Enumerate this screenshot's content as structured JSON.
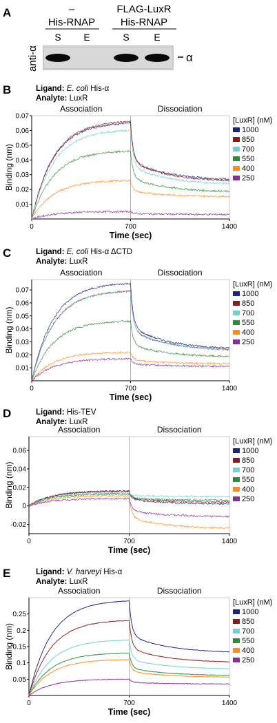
{
  "panel_letters": [
    "A",
    "B",
    "C",
    "D",
    "E"
  ],
  "blot": {
    "side_label": "anti-α",
    "band_label": "α",
    "groups": [
      {
        "top": "–",
        "bottom": "His-RNAP",
        "lanes": [
          "S",
          "E"
        ]
      },
      {
        "top": "FLAG-LuxR",
        "bottom": "His-RNAP",
        "lanes": [
          "S",
          "E"
        ]
      }
    ],
    "band_present": [
      true,
      false,
      true,
      true
    ]
  },
  "legend": {
    "title": "[LuxR] (nM)",
    "entries": [
      "1000",
      "850",
      "700",
      "550",
      "400",
      "250"
    ],
    "colors": [
      "#1a237e",
      "#8b1a1a",
      "#6fd0d6",
      "#2e8b3a",
      "#ff8c1a",
      "#8a2b9a"
    ]
  },
  "chart_data": [
    {
      "type": "line",
      "ligand_label": "Ligand:",
      "ligand_value_italic": "E. coli",
      "ligand_value": "His-α",
      "analyte_label": "Analyte:",
      "analyte_value": "LuxR",
      "phase_labels": [
        "Association",
        "Dissociation"
      ],
      "xlabel": "Time (sec)",
      "ylabel": "Binding (nm)",
      "xlim": [
        0,
        1400
      ],
      "ylim": [
        0,
        0.07
      ],
      "xticks": [
        "0",
        "700",
        "1400"
      ],
      "yticks": [
        0.01,
        0.02,
        0.03,
        0.04,
        0.05,
        0.06,
        0.07
      ],
      "assoc_end": 700,
      "series": [
        {
          "name": "1000",
          "assoc_end_value": 0.065,
          "diss_end_value": 0.026
        },
        {
          "name": "850",
          "assoc_end_value": 0.066,
          "diss_end_value": 0.025
        },
        {
          "name": "700",
          "assoc_end_value": 0.06,
          "diss_end_value": 0.023
        },
        {
          "name": "550",
          "assoc_end_value": 0.046,
          "diss_end_value": 0.018
        },
        {
          "name": "400",
          "assoc_end_value": 0.026,
          "diss_end_value": 0.015
        },
        {
          "name": "250",
          "assoc_end_value": 0.005,
          "diss_end_value": 0.003
        }
      ]
    },
    {
      "type": "line",
      "ligand_label": "Ligand:",
      "ligand_value_italic": "E. coli",
      "ligand_value": "His-α ΔCTD",
      "analyte_label": "Analyte:",
      "analyte_value": "LuxR",
      "phase_labels": [
        "Association",
        "Dissociation"
      ],
      "xlabel": "Time (sec)",
      "ylabel": "Binding (nm)",
      "xlim": [
        0,
        1400
      ],
      "ylim": [
        0,
        0.078
      ],
      "xticks": [
        "0",
        "700",
        "1400"
      ],
      "yticks": [
        0.01,
        0.02,
        0.03,
        0.04,
        0.05,
        0.06,
        0.07
      ],
      "assoc_end": 700,
      "series": [
        {
          "name": "1000",
          "assoc_end_value": 0.075,
          "diss_end_value": 0.024
        },
        {
          "name": "850",
          "assoc_end_value": 0.069,
          "diss_end_value": 0.023
        },
        {
          "name": "700",
          "assoc_end_value": 0.069,
          "diss_end_value": 0.023
        },
        {
          "name": "550",
          "assoc_end_value": 0.046,
          "diss_end_value": 0.018
        },
        {
          "name": "400",
          "assoc_end_value": 0.022,
          "diss_end_value": 0.013
        },
        {
          "name": "250",
          "assoc_end_value": 0.017,
          "diss_end_value": 0.011
        }
      ]
    },
    {
      "type": "line",
      "ligand_label": "Ligand:",
      "ligand_value_italic": "",
      "ligand_value": "His-TEV",
      "analyte_label": "Analyte:",
      "analyte_value": "LuxR",
      "phase_labels": [
        "Association",
        "Dissociation"
      ],
      "xlabel": "Time (sec)",
      "ylabel": "Binding (nm)",
      "xlim": [
        0,
        1400
      ],
      "ylim": [
        -0.03,
        0.075
      ],
      "xticks": [
        "0",
        "700",
        "1400"
      ],
      "yticks": [
        -0.02,
        0,
        0.02,
        0.04,
        0.06
      ],
      "assoc_end": 700,
      "series": [
        {
          "name": "1000",
          "assoc_end_value": 0.016,
          "diss_end_value": 0.002
        },
        {
          "name": "850",
          "assoc_end_value": 0.016,
          "diss_end_value": 0.004
        },
        {
          "name": "700",
          "assoc_end_value": 0.014,
          "diss_end_value": 0.01
        },
        {
          "name": "550",
          "assoc_end_value": 0.013,
          "diss_end_value": 0.006
        },
        {
          "name": "400",
          "assoc_end_value": 0.011,
          "diss_end_value": -0.025
        },
        {
          "name": "250",
          "assoc_end_value": 0.008,
          "diss_end_value": -0.012
        }
      ]
    },
    {
      "type": "line",
      "ligand_label": "Ligand:",
      "ligand_value_italic": "V. harveyi",
      "ligand_value": "His-α",
      "analyte_label": "Analyte:",
      "analyte_value": "LuxR",
      "phase_labels": [
        "Association",
        "Dissociation"
      ],
      "xlabel": "Time (sec)",
      "ylabel": "Binding (nm)",
      "xlim": [
        0,
        1400
      ],
      "ylim": [
        0,
        0.3
      ],
      "xticks": [
        "0",
        "700",
        "1400"
      ],
      "yticks": [
        0.05,
        0.1,
        0.15,
        0.2,
        0.25
      ],
      "assoc_end": 700,
      "series": [
        {
          "name": "1000",
          "assoc_end_value": 0.29,
          "diss_end_value": 0.13
        },
        {
          "name": "850",
          "assoc_end_value": 0.23,
          "diss_end_value": 0.1
        },
        {
          "name": "700",
          "assoc_end_value": 0.17,
          "diss_end_value": 0.08
        },
        {
          "name": "550",
          "assoc_end_value": 0.13,
          "diss_end_value": 0.06
        },
        {
          "name": "400",
          "assoc_end_value": 0.11,
          "diss_end_value": 0.055
        },
        {
          "name": "250",
          "assoc_end_value": 0.05,
          "diss_end_value": 0.035
        }
      ]
    }
  ]
}
